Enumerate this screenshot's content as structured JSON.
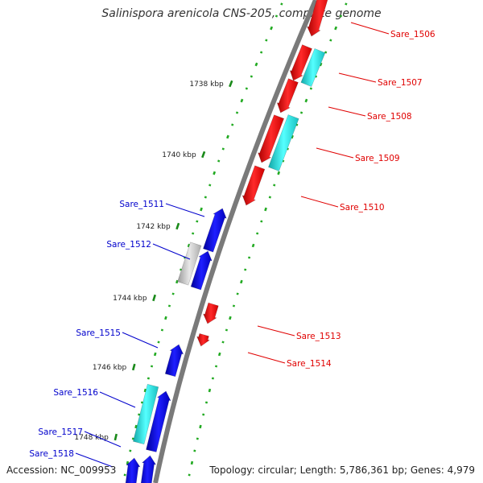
{
  "title": "Salinispora arenicola CNS-205, complete genome",
  "accession": "Accession: NC_009953",
  "summary": "Topology: circular; Length: 5,786,361 bp; Genes: 4,979",
  "colors": {
    "forward": "#ff0000",
    "reverse": "#0000dd",
    "cyan": "#22dddd",
    "pseudo": "#bbbbbb",
    "backbone": "#888888",
    "dots": "#22aa22"
  },
  "ticks": [
    {
      "label": "1738 kbp"
    },
    {
      "label": "1740 kbp"
    },
    {
      "label": "1742 kbp"
    },
    {
      "label": "1744 kbp"
    },
    {
      "label": "1746 kbp"
    },
    {
      "label": "1748 kbp"
    }
  ],
  "genes": [
    {
      "id": "Sare_1506",
      "strand": "+"
    },
    {
      "id": "Sare_1507",
      "strand": "+"
    },
    {
      "id": "Sare_1508",
      "strand": "+"
    },
    {
      "id": "Sare_1509",
      "strand": "+"
    },
    {
      "id": "Sare_1510",
      "strand": "+"
    },
    {
      "id": "Sare_1511",
      "strand": "-"
    },
    {
      "id": "Sare_1512",
      "strand": "-"
    },
    {
      "id": "Sare_1513",
      "strand": "+"
    },
    {
      "id": "Sare_1514",
      "strand": "+"
    },
    {
      "id": "Sare_1515",
      "strand": "-"
    },
    {
      "id": "Sare_1516",
      "strand": "-"
    },
    {
      "id": "Sare_1517",
      "strand": "-"
    },
    {
      "id": "Sare_1518",
      "strand": "-"
    }
  ]
}
